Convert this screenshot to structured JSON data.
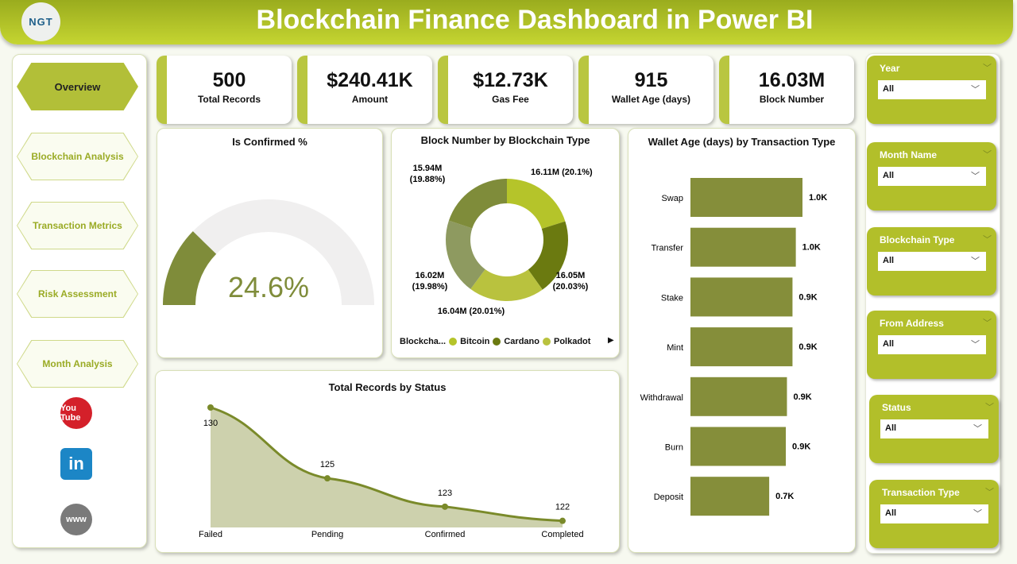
{
  "header": {
    "logo": "NGT",
    "title": "Blockchain Finance Dashboard in Power BI"
  },
  "nav": {
    "items": [
      {
        "label": "Overview",
        "active": true
      },
      {
        "label": "Blockchain Analysis"
      },
      {
        "label": "Transaction Metrics"
      },
      {
        "label": "Risk Assessment"
      },
      {
        "label": "Month Analysis"
      }
    ],
    "social": [
      {
        "icon": "youtube-icon",
        "label": "You Tube"
      },
      {
        "icon": "linkedin-icon",
        "label": "in"
      },
      {
        "icon": "globe-icon",
        "label": "www"
      }
    ]
  },
  "kpis": [
    {
      "value": "500",
      "label": "Total Records"
    },
    {
      "value": "$240.41K",
      "label": "Amount"
    },
    {
      "value": "$12.73K",
      "label": "Gas Fee"
    },
    {
      "value": "915",
      "label": "Wallet Age (days)"
    },
    {
      "value": "16.03M",
      "label": "Block Number"
    }
  ],
  "colors": {
    "accent": "#b2bf2a",
    "olive": "#7f8c3a",
    "dark": "#6b7a10"
  },
  "chart_data": [
    {
      "type": "gauge",
      "title": "Is Confirmed %",
      "value": 24.6,
      "value_label": "24.6%",
      "max": 100
    },
    {
      "type": "pie",
      "title": "Block Number by Blockchain Type",
      "donut": true,
      "slices": [
        {
          "value": 16.11,
          "label": "16.11M (20.1%)",
          "color": "#b5c42a"
        },
        {
          "value": 16.05,
          "label": "16.05M (20.03%)",
          "color": "#6b7a10"
        },
        {
          "value": 16.04,
          "label": "16.04M (20.01%)",
          "color": "#b9c23e"
        },
        {
          "value": 16.02,
          "label": "16.02M (19.98%)",
          "color": "#8e9a60"
        },
        {
          "value": 15.94,
          "label": "15.94M (19.88%)",
          "color": "#7f8c3a"
        }
      ],
      "legend": {
        "title": "Blockcha...",
        "entries": [
          {
            "name": "Bitcoin",
            "color": "#b5c42a"
          },
          {
            "name": "Cardano",
            "color": "#6b7a10"
          },
          {
            "name": "Polkadot",
            "color": "#b9c23e"
          }
        ],
        "position": "bottom"
      }
    },
    {
      "type": "bar",
      "orientation": "horizontal",
      "title": "Wallet Age (days) by Transaction Type",
      "categories": [
        "Swap",
        "Transfer",
        "Stake",
        "Mint",
        "Withdrawal",
        "Burn",
        "Deposit"
      ],
      "values": [
        1010,
        950,
        920,
        920,
        870,
        860,
        710
      ],
      "data_labels": [
        "1.0K",
        "1.0K",
        "0.9K",
        "0.9K",
        "0.9K",
        "0.9K",
        "0.7K"
      ],
      "color": "#858e3a"
    },
    {
      "type": "area",
      "title": "Total Records by Status",
      "categories": [
        "Failed",
        "Pending",
        "Confirmed",
        "Completed"
      ],
      "values": [
        130,
        125,
        123,
        122
      ],
      "ylim": [
        121.7,
        130
      ]
    }
  ],
  "slicers": [
    {
      "title": "Year",
      "value": "All"
    },
    {
      "title": "Month Name",
      "value": "All"
    },
    {
      "title": "Blockchain Type",
      "value": "All"
    },
    {
      "title": "From Address",
      "value": "All"
    },
    {
      "title": "Status",
      "value": "All"
    },
    {
      "title": "Transaction Type",
      "value": "All"
    }
  ]
}
